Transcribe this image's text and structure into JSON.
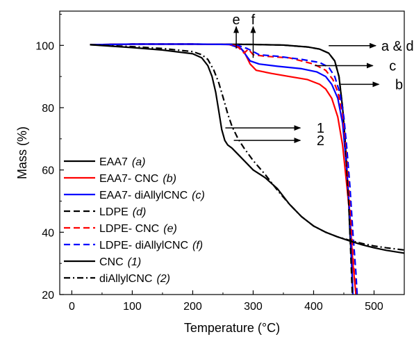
{
  "chart_data": {
    "type": "line",
    "xlabel": "Temperature (°C)",
    "ylabel": "Mass (%)",
    "xlim": [
      -20,
      550
    ],
    "ylim": [
      20,
      111
    ],
    "xticks": [
      0,
      100,
      200,
      300,
      400,
      500
    ],
    "yticks": [
      20,
      40,
      60,
      80,
      100
    ],
    "x_tick_labels": [
      "0",
      "100",
      "200",
      "300",
      "400",
      "500"
    ],
    "y_tick_labels": [
      "20",
      "40",
      "60",
      "80",
      "100"
    ],
    "grid": false,
    "legend_placement": "bottom-left",
    "series": [
      {
        "key": "eaa7",
        "name": "EAA7",
        "tag": "(a)",
        "color": "#000000",
        "dash": "solid",
        "x": [
          30,
          100,
          200,
          300,
          350,
          390,
          410,
          425,
          435,
          442,
          448,
          452,
          455,
          458,
          460,
          463,
          465
        ],
        "y": [
          100.2,
          100.4,
          100.4,
          100.3,
          100.1,
          99.5,
          98.8,
          97.5,
          95.0,
          90.0,
          80.0,
          70.0,
          60.0,
          50.0,
          40.0,
          30.0,
          20.0
        ]
      },
      {
        "key": "eaa7_cnc",
        "name": "EAA7- CNC",
        "tag": "(b)",
        "color": "#ff0000",
        "dash": "solid",
        "x": [
          30,
          100,
          200,
          260,
          275,
          285,
          295,
          305,
          330,
          360,
          390,
          410,
          420,
          430,
          440,
          448,
          455,
          460,
          465,
          470
        ],
        "y": [
          100.2,
          100.4,
          100.4,
          100.3,
          99.8,
          98.0,
          94.0,
          92.0,
          91.0,
          90.0,
          89.0,
          87.5,
          86.0,
          83.0,
          77.0,
          68.0,
          55.0,
          45.0,
          30.0,
          20.0
        ]
      },
      {
        "key": "eaa7_diallylcnc",
        "name": "EAA7- diAllylCNC",
        "tag": "(c)",
        "color": "#0000ff",
        "dash": "solid",
        "x": [
          30,
          100,
          200,
          260,
          280,
          295,
          310,
          340,
          380,
          405,
          420,
          430,
          440,
          448,
          455,
          460,
          465
        ],
        "y": [
          100.2,
          100.4,
          100.4,
          100.3,
          99.0,
          95.0,
          94.0,
          93.3,
          92.5,
          91.5,
          90.0,
          87.5,
          83.0,
          75.0,
          60.0,
          45.0,
          20.0
        ]
      },
      {
        "key": "ldpe",
        "name": "LDPE",
        "tag": "(d)",
        "color": "#000000",
        "dash": "dashed",
        "x": [
          30,
          100,
          200,
          300,
          350,
          390,
          410,
          425,
          435,
          442,
          448,
          452,
          455,
          458,
          461,
          464
        ],
        "y": [
          100.2,
          100.4,
          100.4,
          100.3,
          100.1,
          99.5,
          98.8,
          97.5,
          95.0,
          90.0,
          80.0,
          70.0,
          60.0,
          50.0,
          35.0,
          20.0
        ]
      },
      {
        "key": "ldpe_cnc",
        "name": "LDPE- CNC",
        "tag": "(e)",
        "color": "#ff0000",
        "dash": "dashed",
        "x": [
          30,
          100,
          200,
          260,
          275,
          285,
          292,
          300,
          320,
          360,
          400,
          420,
          432,
          440,
          448,
          455,
          460,
          465,
          470
        ],
        "y": [
          100.2,
          100.4,
          100.4,
          100.3,
          99.5,
          97.5,
          98.8,
          97.0,
          96.5,
          96.0,
          94.0,
          92.0,
          89.0,
          85.0,
          78.0,
          65.0,
          50.0,
          33.0,
          20.0
        ]
      },
      {
        "key": "ldpe_diallylcnc",
        "name": "LDPE- diAllylCNC",
        "tag": "(f)",
        "color": "#0000ff",
        "dash": "dashed",
        "x": [
          30,
          100,
          200,
          270,
          290,
          310,
          340,
          380,
          410,
          425,
          435,
          443,
          450,
          455,
          460,
          465,
          470,
          472
        ],
        "y": [
          100.2,
          100.4,
          100.4,
          100.3,
          99.0,
          97.0,
          96.5,
          95.5,
          94.5,
          93.0,
          90.0,
          85.0,
          77.0,
          67.0,
          55.0,
          40.0,
          27.0,
          20.0
        ]
      },
      {
        "key": "cnc",
        "name": "CNC",
        "tag": "(1)",
        "color": "#000000",
        "dash": "solid",
        "x": [
          30,
          100,
          150,
          200,
          215,
          225,
          232,
          238,
          243,
          248,
          253,
          258,
          265,
          275,
          290,
          300,
          320,
          340,
          360,
          380,
          400,
          420,
          440,
          460,
          480,
          500,
          520,
          550
        ],
        "y": [
          100.2,
          99.3,
          98.5,
          97.3,
          96.0,
          93.5,
          90.0,
          85.0,
          79.0,
          73.0,
          69.5,
          68.0,
          67.0,
          65.0,
          62.0,
          60.0,
          57.5,
          54.0,
          49.0,
          45.0,
          42.0,
          40.0,
          38.5,
          37.2,
          36.0,
          35.0,
          34.2,
          33.3
        ]
      },
      {
        "key": "diallylcnc",
        "name": "diAllylCNC",
        "tag": "(2)",
        "color": "#000000",
        "dash": "dashdot",
        "x": [
          30,
          100,
          150,
          200,
          215,
          225,
          235,
          243,
          250,
          258,
          265,
          275,
          285,
          300,
          320,
          340,
          360,
          380,
          400,
          420,
          440,
          460,
          480,
          500,
          520,
          550
        ],
        "y": [
          100.2,
          99.6,
          99.0,
          98.0,
          97.0,
          95.5,
          92.0,
          88.0,
          83.5,
          78.0,
          74.0,
          70.0,
          67.0,
          63.0,
          58.5,
          53.5,
          49.0,
          45.0,
          42.0,
          40.0,
          38.5,
          37.4,
          36.4,
          35.6,
          35.0,
          34.3
        ]
      }
    ],
    "annotations": [
      {
        "text": "a & d",
        "arrow": "right",
        "x0": 425,
        "y0": 99.9,
        "x1": 503,
        "y1": 99.9,
        "tx": 512,
        "ty": 99.9
      },
      {
        "text": "c",
        "arrow": "right",
        "x0": 402,
        "y0": 93.5,
        "x1": 498,
        "y1": 93.5,
        "tx": 525,
        "ty": 93.5
      },
      {
        "text": "b",
        "arrow": "right",
        "x0": 445,
        "y0": 87.5,
        "x1": 508,
        "y1": 87.5,
        "tx": 535,
        "ty": 87.5
      },
      {
        "text": "1",
        "arrow": "right",
        "x0": 254,
        "y0": 73.5,
        "x1": 378,
        "y1": 73.5,
        "tx": 405,
        "ty": 73.5
      },
      {
        "text": "2",
        "arrow": "right",
        "x0": 268,
        "y0": 69.5,
        "x1": 378,
        "y1": 69.5,
        "tx": 405,
        "ty": 69.5
      },
      {
        "text": "e",
        "arrow": "up",
        "x0": 272,
        "y0": 99.0,
        "x1": 272,
        "y1": 106.0,
        "tx": 272,
        "ty": 108.3
      },
      {
        "text": "f",
        "arrow": "up",
        "x0": 300,
        "y0": 96.0,
        "x1": 300,
        "y1": 106.0,
        "tx": 300,
        "ty": 108.3
      }
    ]
  }
}
